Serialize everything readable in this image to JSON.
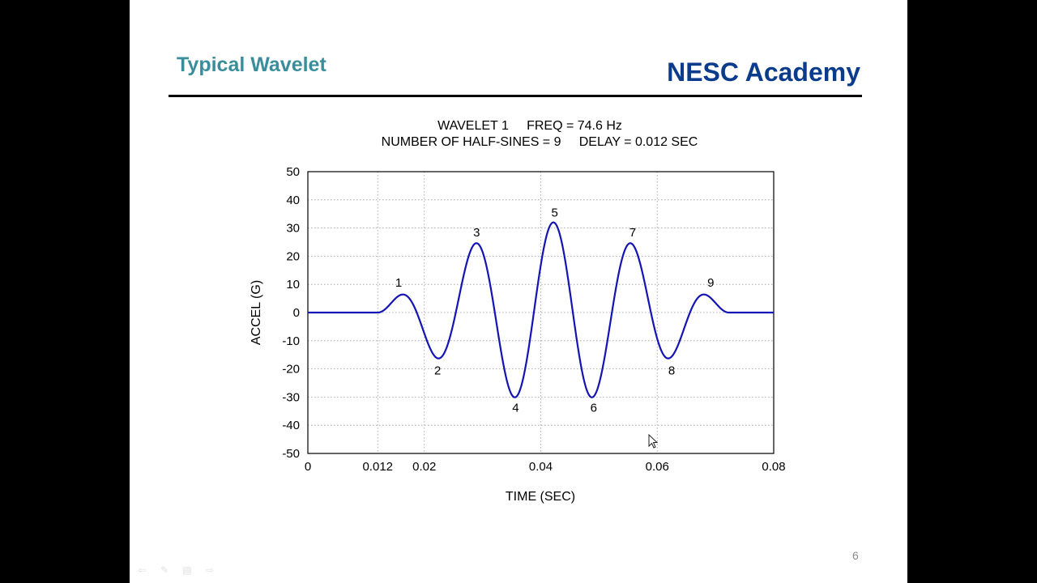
{
  "slide": {
    "title": "Typical Wavelet",
    "brand": "NESC Academy",
    "page_number": "6"
  },
  "colors": {
    "title": "#3a8e9c",
    "brand": "#0b3c8c",
    "series": "#1414b4",
    "background": "#ffffff"
  },
  "controls": [
    {
      "name": "previous-slide-icon",
      "glyph": "⇦"
    },
    {
      "name": "pen-icon",
      "glyph": "✎"
    },
    {
      "name": "menu-icon",
      "glyph": "▤"
    },
    {
      "name": "next-slide-icon",
      "glyph": "⇨"
    }
  ],
  "chart_data": {
    "type": "line",
    "title_lines": [
      "WAVELET 1     FREQ = 74.6 Hz",
      "NUMBER OF HALF-SINES = 9     DELAY = 0.012 SEC"
    ],
    "xlabel": "TIME (SEC)",
    "ylabel": "ACCEL (G)",
    "xlim": [
      0,
      0.08
    ],
    "ylim": [
      -50,
      50
    ],
    "x_ticks": [
      0,
      0.012,
      0.02,
      0.04,
      0.06,
      0.08
    ],
    "x_tick_labels": [
      "0",
      "0.012",
      "0.02",
      "0.04",
      "0.06",
      "0.08"
    ],
    "y_ticks": [
      50,
      40,
      30,
      20,
      10,
      0,
      -10,
      -20,
      -30,
      -40,
      -50
    ],
    "y_tick_labels": [
      "50",
      "40",
      "30",
      "20",
      "10",
      "0",
      "-10",
      "-20",
      "-30",
      "-40",
      "-50"
    ],
    "grid": true,
    "wavelet": {
      "frequency_hz": 74.6,
      "half_sines": 9,
      "delay_sec": 0.012,
      "amplitude_g": 32
    },
    "peaks": [
      {
        "label": "1",
        "x": 0.016,
        "y": 6.3
      },
      {
        "label": "2",
        "x": 0.0227,
        "y": -16.2
      },
      {
        "label": "3",
        "x": 0.0294,
        "y": 24.2
      },
      {
        "label": "4",
        "x": 0.0361,
        "y": -29.4
      },
      {
        "label": "5",
        "x": 0.0428,
        "y": 31.2
      },
      {
        "label": "6",
        "x": 0.0495,
        "y": -29.4
      },
      {
        "label": "7",
        "x": 0.0562,
        "y": 24.2
      },
      {
        "label": "8",
        "x": 0.0629,
        "y": -16.2
      },
      {
        "label": "9",
        "x": 0.0696,
        "y": 6.3
      }
    ]
  }
}
